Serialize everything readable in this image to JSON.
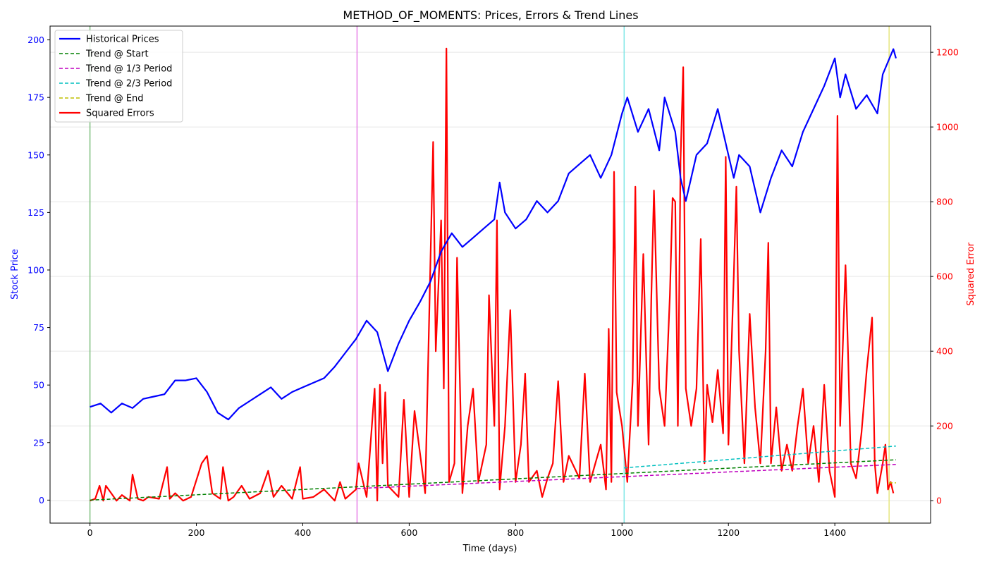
{
  "chart_data": {
    "type": "line",
    "title": "METHOD_OF_MOMENTS: Prices, Errors & Trend Lines",
    "xlabel": "Time (days)",
    "ylabel_left": "Stock Price",
    "ylabel_right": "Squared Error",
    "xlim": [
      -75,
      1580
    ],
    "ylim_left": [
      -10,
      206
    ],
    "ylim_right": [
      -60,
      1270
    ],
    "x_ticks": [
      0,
      200,
      400,
      600,
      800,
      1000,
      1200,
      1400
    ],
    "y_ticks_left": [
      0,
      25,
      50,
      75,
      100,
      125,
      150,
      175,
      200
    ],
    "y_ticks_right": [
      0,
      200,
      400,
      600,
      800,
      1000,
      1200
    ],
    "grid": true,
    "legend_position": "top-left",
    "colors": {
      "prices": "#0000ff",
      "errors": "#ff0000",
      "trend_start": "#008000",
      "trend_third": "#bf00bf",
      "trend_two_third": "#00bfbf",
      "trend_end": "#bfbf00",
      "left_axis": "#0000ff",
      "right_axis": "#ff0000"
    },
    "vertical_lines": [
      {
        "x": 0,
        "color": "#7fbf7f"
      },
      {
        "x": 502,
        "color": "#e67fe6"
      },
      {
        "x": 1004,
        "color": "#7fe6e6"
      },
      {
        "x": 1502,
        "color": "#e6e67f"
      }
    ],
    "series": [
      {
        "name": "Historical Prices",
        "axis": "left",
        "style": "solid",
        "points": [
          [
            0,
            40.5
          ],
          [
            20,
            42
          ],
          [
            40,
            38
          ],
          [
            60,
            42
          ],
          [
            80,
            40
          ],
          [
            100,
            44
          ],
          [
            120,
            45
          ],
          [
            140,
            46
          ],
          [
            160,
            52
          ],
          [
            180,
            52
          ],
          [
            200,
            53
          ],
          [
            220,
            47
          ],
          [
            240,
            38
          ],
          [
            260,
            35
          ],
          [
            280,
            40
          ],
          [
            300,
            43
          ],
          [
            320,
            46
          ],
          [
            340,
            49
          ],
          [
            360,
            44
          ],
          [
            380,
            47
          ],
          [
            400,
            49
          ],
          [
            420,
            51
          ],
          [
            440,
            53
          ],
          [
            460,
            58
          ],
          [
            480,
            64
          ],
          [
            500,
            70
          ],
          [
            520,
            78
          ],
          [
            540,
            73
          ],
          [
            560,
            56
          ],
          [
            580,
            68
          ],
          [
            600,
            78
          ],
          [
            620,
            86
          ],
          [
            640,
            95
          ],
          [
            660,
            108
          ],
          [
            680,
            116
          ],
          [
            700,
            110
          ],
          [
            720,
            114
          ],
          [
            740,
            118
          ],
          [
            760,
            122
          ],
          [
            770,
            138
          ],
          [
            780,
            125
          ],
          [
            800,
            118
          ],
          [
            820,
            122
          ],
          [
            840,
            130
          ],
          [
            860,
            125
          ],
          [
            880,
            130
          ],
          [
            900,
            142
          ],
          [
            920,
            146
          ],
          [
            940,
            150
          ],
          [
            960,
            140
          ],
          [
            980,
            150
          ],
          [
            1000,
            168
          ],
          [
            1010,
            175
          ],
          [
            1030,
            160
          ],
          [
            1050,
            170
          ],
          [
            1070,
            152
          ],
          [
            1080,
            175
          ],
          [
            1100,
            160
          ],
          [
            1110,
            140
          ],
          [
            1120,
            130
          ],
          [
            1140,
            150
          ],
          [
            1160,
            155
          ],
          [
            1180,
            170
          ],
          [
            1200,
            150
          ],
          [
            1210,
            140
          ],
          [
            1220,
            150
          ],
          [
            1240,
            145
          ],
          [
            1260,
            125
          ],
          [
            1280,
            140
          ],
          [
            1300,
            152
          ],
          [
            1320,
            145
          ],
          [
            1340,
            160
          ],
          [
            1360,
            170
          ],
          [
            1380,
            180
          ],
          [
            1400,
            192
          ],
          [
            1410,
            175
          ],
          [
            1420,
            185
          ],
          [
            1440,
            170
          ],
          [
            1460,
            176
          ],
          [
            1480,
            168
          ],
          [
            1490,
            185
          ],
          [
            1510,
            196
          ],
          [
            1515,
            192
          ]
        ]
      },
      {
        "name": "Trend @ Start",
        "axis": "left",
        "style": "dashed",
        "points": [
          [
            0,
            0
          ],
          [
            1515,
            17.5
          ]
        ]
      },
      {
        "name": "Trend @ 1/3 Period",
        "axis": "left",
        "style": "dashed",
        "points": [
          [
            502,
            5
          ],
          [
            1515,
            15.5
          ]
        ]
      },
      {
        "name": "Trend @ 2/3 Period",
        "axis": "left",
        "style": "dashed",
        "points": [
          [
            1004,
            14
          ],
          [
            1515,
            23.5
          ]
        ]
      },
      {
        "name": "Trend @ End",
        "axis": "left",
        "style": "dashed",
        "points": [
          [
            1502,
            7.5
          ],
          [
            1515,
            7.5
          ]
        ]
      },
      {
        "name": "Squared Errors",
        "axis": "right",
        "style": "solid",
        "points": [
          [
            0,
            0
          ],
          [
            10,
            5
          ],
          [
            18,
            40
          ],
          [
            25,
            0
          ],
          [
            30,
            40
          ],
          [
            40,
            20
          ],
          [
            50,
            0
          ],
          [
            60,
            15
          ],
          [
            75,
            0
          ],
          [
            80,
            70
          ],
          [
            90,
            5
          ],
          [
            100,
            0
          ],
          [
            110,
            10
          ],
          [
            130,
            5
          ],
          [
            145,
            90
          ],
          [
            150,
            5
          ],
          [
            160,
            20
          ],
          [
            175,
            0
          ],
          [
            190,
            10
          ],
          [
            210,
            100
          ],
          [
            220,
            120
          ],
          [
            230,
            20
          ],
          [
            245,
            5
          ],
          [
            250,
            90
          ],
          [
            260,
            0
          ],
          [
            270,
            10
          ],
          [
            285,
            40
          ],
          [
            300,
            5
          ],
          [
            320,
            20
          ],
          [
            335,
            80
          ],
          [
            345,
            10
          ],
          [
            360,
            40
          ],
          [
            380,
            5
          ],
          [
            395,
            90
          ],
          [
            400,
            5
          ],
          [
            420,
            10
          ],
          [
            440,
            30
          ],
          [
            460,
            0
          ],
          [
            470,
            50
          ],
          [
            480,
            5
          ],
          [
            500,
            30
          ],
          [
            505,
            100
          ],
          [
            520,
            10
          ],
          [
            535,
            300
          ],
          [
            540,
            0
          ],
          [
            545,
            310
          ],
          [
            550,
            100
          ],
          [
            555,
            290
          ],
          [
            560,
            40
          ],
          [
            580,
            10
          ],
          [
            590,
            270
          ],
          [
            600,
            10
          ],
          [
            610,
            240
          ],
          [
            630,
            20
          ],
          [
            645,
            960
          ],
          [
            650,
            400
          ],
          [
            660,
            750
          ],
          [
            665,
            300
          ],
          [
            670,
            1210
          ],
          [
            675,
            50
          ],
          [
            685,
            100
          ],
          [
            690,
            650
          ],
          [
            700,
            20
          ],
          [
            710,
            200
          ],
          [
            720,
            300
          ],
          [
            730,
            50
          ],
          [
            745,
            150
          ],
          [
            750,
            550
          ],
          [
            760,
            200
          ],
          [
            765,
            750
          ],
          [
            770,
            30
          ],
          [
            780,
            200
          ],
          [
            790,
            510
          ],
          [
            800,
            50
          ],
          [
            810,
            150
          ],
          [
            818,
            340
          ],
          [
            825,
            50
          ],
          [
            840,
            80
          ],
          [
            850,
            10
          ],
          [
            860,
            60
          ],
          [
            870,
            100
          ],
          [
            880,
            320
          ],
          [
            890,
            50
          ],
          [
            900,
            120
          ],
          [
            920,
            60
          ],
          [
            930,
            340
          ],
          [
            940,
            50
          ],
          [
            950,
            100
          ],
          [
            960,
            150
          ],
          [
            970,
            30
          ],
          [
            975,
            460
          ],
          [
            980,
            50
          ],
          [
            985,
            880
          ],
          [
            990,
            290
          ],
          [
            1000,
            200
          ],
          [
            1010,
            50
          ],
          [
            1020,
            320
          ],
          [
            1025,
            840
          ],
          [
            1030,
            200
          ],
          [
            1040,
            660
          ],
          [
            1050,
            150
          ],
          [
            1055,
            540
          ],
          [
            1060,
            830
          ],
          [
            1070,
            300
          ],
          [
            1080,
            200
          ],
          [
            1090,
            550
          ],
          [
            1095,
            810
          ],
          [
            1100,
            800
          ],
          [
            1105,
            200
          ],
          [
            1110,
            910
          ],
          [
            1115,
            1160
          ],
          [
            1120,
            300
          ],
          [
            1130,
            200
          ],
          [
            1140,
            300
          ],
          [
            1148,
            700
          ],
          [
            1155,
            100
          ],
          [
            1160,
            310
          ],
          [
            1170,
            210
          ],
          [
            1180,
            350
          ],
          [
            1190,
            180
          ],
          [
            1195,
            920
          ],
          [
            1200,
            150
          ],
          [
            1210,
            600
          ],
          [
            1215,
            840
          ],
          [
            1220,
            400
          ],
          [
            1230,
            100
          ],
          [
            1240,
            500
          ],
          [
            1250,
            250
          ],
          [
            1260,
            100
          ],
          [
            1270,
            400
          ],
          [
            1275,
            690
          ],
          [
            1280,
            100
          ],
          [
            1290,
            250
          ],
          [
            1300,
            80
          ],
          [
            1310,
            150
          ],
          [
            1320,
            80
          ],
          [
            1330,
            200
          ],
          [
            1340,
            300
          ],
          [
            1350,
            100
          ],
          [
            1360,
            200
          ],
          [
            1370,
            50
          ],
          [
            1380,
            310
          ],
          [
            1390,
            80
          ],
          [
            1400,
            10
          ],
          [
            1405,
            1030
          ],
          [
            1410,
            200
          ],
          [
            1420,
            630
          ],
          [
            1425,
            390
          ],
          [
            1430,
            100
          ],
          [
            1440,
            60
          ],
          [
            1450,
            180
          ],
          [
            1460,
            350
          ],
          [
            1470,
            490
          ],
          [
            1475,
            100
          ],
          [
            1480,
            20
          ],
          [
            1490,
            100
          ],
          [
            1495,
            150
          ],
          [
            1500,
            30
          ],
          [
            1505,
            50
          ],
          [
            1510,
            20
          ]
        ]
      }
    ]
  }
}
